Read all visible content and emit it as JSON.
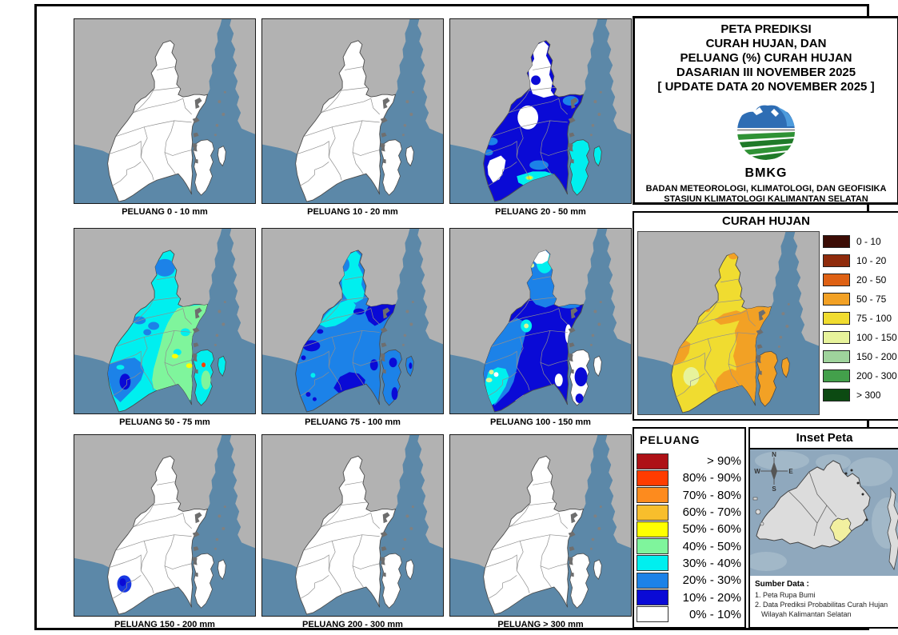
{
  "title_box": {
    "lines": [
      "PETA PREDIKSI",
      "CURAH HUJAN, DAN",
      "PELUANG (%) CURAH HUJAN",
      "DASARIAN III NOVEMBER 2025",
      "[ UPDATE DATA 20 NOVEMBER 2025 ]"
    ],
    "logo_label": "BMKG",
    "org_lines": [
      "BADAN METEOROLOGI, KLIMATOLOGI, DAN GEOFISIKA",
      "STASIUN KLIMATOLOGI KALIMANTAN SELATAN"
    ]
  },
  "map_grid": {
    "captions": [
      "PELUANG 0 - 10 mm",
      "PELUANG 10 - 20 mm",
      "PELUANG 20 - 50 mm",
      "PELUANG 50 - 75 mm",
      "PELUANG 75 - 100 mm",
      "PELUANG 100 - 150 mm",
      "PELUANG 150 - 200 mm",
      "PELUANG 200 - 300 mm",
      "PELUANG > 300 mm"
    ]
  },
  "curah_hujan": {
    "title": "CURAH HUJAN",
    "legend": [
      {
        "label": "0 - 10",
        "color": "#3C0D06"
      },
      {
        "label": "10 - 20",
        "color": "#8F2B0C"
      },
      {
        "label": "20 - 50",
        "color": "#DE6114"
      },
      {
        "label": "50 - 75",
        "color": "#F2A125"
      },
      {
        "label": "75 - 100",
        "color": "#F0DC30"
      },
      {
        "label": "100 - 150",
        "color": "#E7F39B"
      },
      {
        "label": "150 - 200",
        "color": "#9FD39C"
      },
      {
        "label": "200 - 300",
        "color": "#43A04B"
      },
      {
        "label": "> 300",
        "color": "#0C4A12"
      }
    ]
  },
  "peluang_legend": {
    "title": "PELUANG",
    "items": [
      {
        "label": "> 90%",
        "color": "#AE1116"
      },
      {
        "label": "80% - 90%",
        "color": "#FF3C00"
      },
      {
        "label": "70% - 80%",
        "color": "#FD8B1E"
      },
      {
        "label": "60% - 70%",
        "color": "#F8BE2C"
      },
      {
        "label": "50% - 60%",
        "color": "#FFFF00"
      },
      {
        "label": "40% - 50%",
        "color": "#7FF59C"
      },
      {
        "label": "30% - 40%",
        "color": "#00EFEF"
      },
      {
        "label": "20% - 30%",
        "color": "#1C82E8"
      },
      {
        "label": "10% - 20%",
        "color": "#0A0AD6"
      },
      {
        "label": "0% - 10%",
        "color": "#FFFFFF"
      }
    ]
  },
  "inset": {
    "title": "Inset Peta",
    "compass": {
      "n": "N",
      "w": "W",
      "e": "E",
      "s": "S"
    },
    "source_title": "Sumber Data :",
    "source_lines": [
      "1. Peta Rupa Bumi",
      "2. Data Prediksi Probabilitas Curah Hujan",
      "Wilayah Kalimantan Selatan"
    ]
  },
  "map_colors": {
    "land": "#B2B2B2",
    "sea": "#5C88A8",
    "province_outline": "#4A4A4A",
    "district_border": "#8F8F8F",
    "coast_dark": "#6E6E6E",
    "islet_grey": "#808080",
    "blob_blue": "#1838E2",
    "pale_green_spot": "#D9F598",
    "inset_sea": "#8FA8BD",
    "inset_sea_light": "#A6BBCA",
    "inset_land": "#DCDCDC",
    "inset_highlight": "#F2F0A0",
    "logo_blue": "#2E6DB4",
    "logo_blue_light": "#4D9BDC",
    "logo_green": "#2F9235",
    "logo_green_dark": "#1F7A28"
  }
}
